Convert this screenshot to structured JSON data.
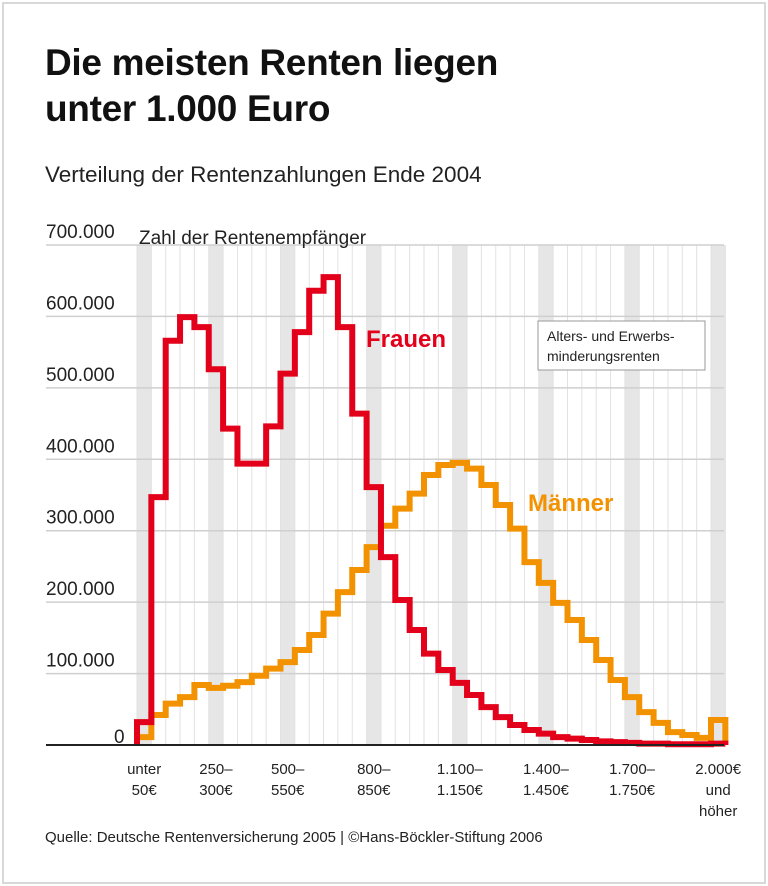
{
  "title_line1": "Die meisten Renten liegen",
  "title_line2": "unter 1.000 Euro",
  "subtitle": "Verteilung der Rentenzahlungen Ende 2004",
  "source": "Quelle: Deutsche Rentenversicherung 2005 | ©Hans-Böckler-Stiftung 2006",
  "chart_data": {
    "type": "line",
    "step": true,
    "ylabel": "Zahl der Rentenempfänger",
    "ylim": [
      0,
      700000
    ],
    "yticks": [
      0,
      100000,
      200000,
      300000,
      400000,
      500000,
      600000,
      700000
    ],
    "ytick_labels": [
      "0",
      "100.000",
      "200.000",
      "300.000",
      "400.000",
      "500.000",
      "600.000",
      "700.000"
    ],
    "bin_width_eur": 50,
    "bins": 41,
    "xtick_labels": [
      {
        "bin": 0,
        "lines": [
          "unter",
          "50€"
        ]
      },
      {
        "bin": 5,
        "lines": [
          "250–",
          "300€"
        ]
      },
      {
        "bin": 10,
        "lines": [
          "500–",
          "550€"
        ]
      },
      {
        "bin": 16,
        "lines": [
          "800–",
          "850€"
        ]
      },
      {
        "bin": 22,
        "lines": [
          "1.100–",
          "1.150€"
        ]
      },
      {
        "bin": 28,
        "lines": [
          "1.400–",
          "1.450€"
        ]
      },
      {
        "bin": 34,
        "lines": [
          "1.700–",
          "1.750€"
        ]
      },
      {
        "bin": 40,
        "lines": [
          "2.000€",
          "und",
          "höher"
        ]
      }
    ],
    "legend_box": [
      "Alters- und Erwerbs-",
      "minderungsrenten"
    ],
    "series": [
      {
        "name": "Frauen",
        "color": "#e2001a",
        "values": [
          32000,
          347000,
          566000,
          599000,
          585000,
          526000,
          443000,
          394000,
          394000,
          446000,
          520000,
          578000,
          636000,
          655000,
          585000,
          464000,
          361000,
          263000,
          203000,
          161000,
          128000,
          105000,
          87000,
          70000,
          53000,
          39000,
          28000,
          21000,
          16000,
          11000,
          9000,
          7000,
          5000,
          4000,
          3000,
          2000,
          2000,
          1000,
          1000,
          1000,
          2000
        ]
      },
      {
        "name": "Männer",
        "color": "#f39200",
        "values": [
          11000,
          42000,
          58000,
          67000,
          84000,
          80000,
          83000,
          88000,
          97000,
          107000,
          116000,
          133000,
          154000,
          184000,
          214000,
          245000,
          277000,
          307000,
          331000,
          352000,
          378000,
          392000,
          395000,
          387000,
          364000,
          336000,
          303000,
          256000,
          227000,
          199000,
          175000,
          147000,
          119000,
          91000,
          67000,
          46000,
          31000,
          18000,
          14000,
          10000,
          35000
        ]
      }
    ]
  }
}
